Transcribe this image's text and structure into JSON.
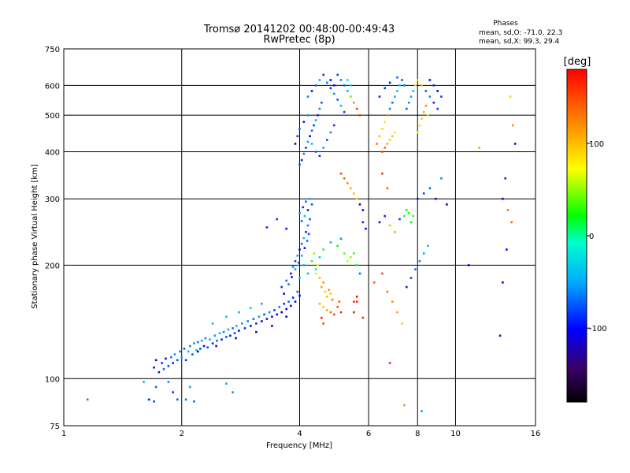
{
  "chart_data": {
    "type": "scatter",
    "title": "Tromsø 20141202 00:48:00-00:49:43",
    "subtitle": "RwPretec (8p)",
    "stats_title": "Phases",
    "stats_o": "mean, sd,O: -71.0, 22.3",
    "stats_x": "mean, sd,X:  99.3, 29.4",
    "xlabel": "Frequency [MHz]",
    "ylabel": "Stationary phase Virtual Height [km]",
    "xscale": "log",
    "yscale": "log",
    "xlim": [
      1,
      16
    ],
    "ylim": [
      75,
      750
    ],
    "xticks": [
      1,
      2,
      4,
      6,
      8,
      10,
      16
    ],
    "xtick_labels": [
      "1",
      "2",
      "4",
      "6",
      "8",
      "10",
      "16"
    ],
    "yticks": [
      75,
      100,
      200,
      300,
      400,
      500,
      600,
      750
    ],
    "ytick_labels": [
      "75",
      "100",
      "200",
      "300",
      "400",
      "500",
      "600",
      "750"
    ],
    "grid": true,
    "colorbar": {
      "label": "[deg]",
      "range": [
        -180,
        180
      ],
      "ticks": [
        100,
        0,
        -100
      ],
      "tick_labels": [
        "100",
        "0",
        "-100"
      ]
    },
    "points": [
      [
        1.15,
        88,
        -60
      ],
      [
        1.6,
        98,
        -45
      ],
      [
        1.65,
        88,
        -90
      ],
      [
        1.7,
        87,
        -80
      ],
      [
        1.72,
        95,
        -70
      ],
      [
        1.85,
        98,
        -60
      ],
      [
        1.9,
        92,
        -85
      ],
      [
        1.95,
        88,
        -75
      ],
      [
        2.05,
        88,
        -65
      ],
      [
        2.1,
        95,
        -50
      ],
      [
        2.15,
        87,
        -70
      ],
      [
        2.6,
        97,
        -50
      ],
      [
        2.7,
        92,
        -55
      ],
      [
        1.7,
        107,
        -100
      ],
      [
        1.72,
        112,
        -115
      ],
      [
        1.75,
        104,
        -95
      ],
      [
        1.78,
        110,
        -85
      ],
      [
        1.8,
        106,
        -70
      ],
      [
        1.82,
        113,
        -100
      ],
      [
        1.85,
        108,
        -80
      ],
      [
        1.88,
        114,
        -65
      ],
      [
        1.9,
        110,
        -90
      ],
      [
        1.92,
        116,
        -55
      ],
      [
        1.95,
        112,
        -75
      ],
      [
        1.98,
        118,
        -60
      ],
      [
        2.0,
        114,
        -50
      ],
      [
        2.03,
        120,
        -70
      ],
      [
        2.05,
        112,
        -85
      ],
      [
        2.08,
        118,
        -45
      ],
      [
        2.1,
        122,
        -60
      ],
      [
        2.13,
        116,
        -75
      ],
      [
        2.15,
        124,
        -55
      ],
      [
        2.18,
        119,
        -40
      ],
      [
        2.2,
        125,
        -65
      ],
      [
        2.23,
        120,
        -80
      ],
      [
        2.25,
        126,
        -50
      ],
      [
        2.28,
        122,
        -95
      ],
      [
        2.3,
        128,
        -60
      ],
      [
        2.33,
        121,
        -75
      ],
      [
        2.36,
        127,
        -45
      ],
      [
        2.4,
        124,
        -85
      ],
      [
        2.43,
        130,
        -55
      ],
      [
        2.46,
        126,
        -70
      ],
      [
        2.5,
        132,
        -40
      ],
      [
        2.53,
        127,
        -90
      ],
      [
        2.56,
        133,
        -60
      ],
      [
        2.6,
        129,
        -75
      ],
      [
        2.63,
        135,
        -50
      ],
      [
        2.66,
        130,
        -95
      ],
      [
        2.7,
        136,
        -65
      ],
      [
        2.73,
        132,
        -80
      ],
      [
        2.76,
        138,
        -45
      ],
      [
        2.8,
        134,
        -100
      ],
      [
        2.85,
        140,
        -55
      ],
      [
        2.9,
        136,
        -85
      ],
      [
        2.95,
        142,
        -60
      ],
      [
        3.0,
        138,
        -105
      ],
      [
        3.05,
        144,
        -70
      ],
      [
        3.1,
        140,
        -90
      ],
      [
        3.15,
        146,
        -50
      ],
      [
        3.2,
        142,
        -110
      ],
      [
        3.25,
        148,
        -75
      ],
      [
        3.3,
        144,
        -95
      ],
      [
        3.35,
        150,
        -60
      ],
      [
        3.4,
        146,
        -115
      ],
      [
        3.45,
        152,
        -80
      ],
      [
        3.5,
        148,
        -100
      ],
      [
        3.55,
        155,
        -65
      ],
      [
        3.6,
        150,
        -120
      ],
      [
        3.65,
        158,
        -85
      ],
      [
        3.7,
        153,
        -105
      ],
      [
        3.75,
        160,
        -70
      ],
      [
        3.8,
        156,
        -125
      ],
      [
        3.85,
        164,
        -90
      ],
      [
        3.9,
        160,
        -110
      ],
      [
        3.95,
        170,
        -75
      ],
      [
        4.0,
        166,
        -100
      ],
      [
        2.2,
        118,
        -105
      ],
      [
        2.45,
        122,
        -115
      ],
      [
        2.75,
        128,
        -110
      ],
      [
        3.1,
        133,
        -120
      ],
      [
        3.4,
        138,
        -108
      ],
      [
        3.7,
        146,
        -118
      ],
      [
        2.4,
        140,
        -40
      ],
      [
        2.6,
        146,
        -35
      ],
      [
        2.8,
        150,
        -45
      ],
      [
        3.0,
        154,
        -30
      ],
      [
        3.2,
        158,
        -50
      ],
      [
        3.3,
        252,
        -90
      ],
      [
        3.5,
        265,
        -80
      ],
      [
        3.7,
        250,
        -100
      ],
      [
        3.6,
        175,
        -85
      ],
      [
        3.7,
        182,
        -70
      ],
      [
        3.8,
        190,
        -95
      ],
      [
        3.85,
        198,
        -60
      ],
      [
        3.9,
        205,
        -80
      ],
      [
        3.95,
        212,
        -50
      ],
      [
        4.0,
        220,
        -100
      ],
      [
        4.05,
        228,
        -70
      ],
      [
        4.1,
        236,
        -40
      ],
      [
        4.15,
        245,
        -90
      ],
      [
        4.2,
        255,
        -60
      ],
      [
        4.25,
        265,
        -75
      ],
      [
        3.65,
        168,
        -110
      ],
      [
        3.75,
        178,
        -65
      ],
      [
        3.82,
        186,
        -90
      ],
      [
        3.9,
        195,
        -55
      ],
      [
        3.98,
        203,
        -85
      ],
      [
        4.05,
        212,
        -45
      ],
      [
        4.12,
        222,
        -95
      ],
      [
        4.18,
        232,
        -65
      ],
      [
        4.22,
        242,
        -80
      ],
      [
        4.0,
        185,
        -30
      ],
      [
        4.1,
        200,
        -40
      ],
      [
        4.2,
        190,
        -50
      ],
      [
        4.0,
        275,
        -55
      ],
      [
        4.05,
        262,
        -70
      ],
      [
        4.08,
        285,
        -85
      ],
      [
        4.12,
        270,
        -40
      ],
      [
        4.15,
        295,
        -65
      ],
      [
        4.2,
        280,
        -95
      ],
      [
        4.25,
        300,
        -50
      ],
      [
        4.3,
        290,
        -75
      ],
      [
        4.3,
        205,
        30
      ],
      [
        4.35,
        215,
        50
      ],
      [
        4.4,
        190,
        60
      ],
      [
        4.45,
        200,
        80
      ],
      [
        4.5,
        185,
        100
      ],
      [
        4.55,
        175,
        110
      ],
      [
        4.6,
        180,
        120
      ],
      [
        4.65,
        170,
        90
      ],
      [
        4.7,
        165,
        100
      ],
      [
        4.75,
        172,
        115
      ],
      [
        4.8,
        168,
        95
      ],
      [
        4.85,
        162,
        130
      ],
      [
        4.5,
        158,
        105
      ],
      [
        4.6,
        155,
        98
      ],
      [
        4.7,
        152,
        108
      ],
      [
        4.8,
        150,
        135
      ],
      [
        4.9,
        148,
        150
      ],
      [
        5.0,
        155,
        145
      ],
      [
        5.05,
        160,
        140
      ],
      [
        5.1,
        150,
        160
      ],
      [
        4.55,
        145,
        165
      ],
      [
        4.6,
        140,
        150
      ],
      [
        4.4,
        195,
        -20
      ],
      [
        4.5,
        210,
        -30
      ],
      [
        4.6,
        220,
        10
      ],
      [
        4.8,
        230,
        -40
      ],
      [
        5.0,
        225,
        20
      ],
      [
        5.2,
        215,
        40
      ],
      [
        5.3,
        205,
        60
      ],
      [
        5.1,
        235,
        -60
      ],
      [
        5.4,
        210,
        50
      ],
      [
        5.5,
        215,
        30
      ],
      [
        5.6,
        200,
        20
      ],
      [
        5.7,
        190,
        -70
      ],
      [
        5.5,
        150,
        170
      ],
      [
        5.6,
        160,
        165
      ],
      [
        5.6,
        165,
        175
      ],
      [
        5.5,
        160,
        160
      ],
      [
        5.8,
        145,
        160
      ],
      [
        4.0,
        370,
        -70
      ],
      [
        4.05,
        380,
        -95
      ],
      [
        4.1,
        395,
        -60
      ],
      [
        4.15,
        410,
        -85
      ],
      [
        4.2,
        425,
        -50
      ],
      [
        4.25,
        440,
        -100
      ],
      [
        4.3,
        455,
        -65
      ],
      [
        4.35,
        470,
        -80
      ],
      [
        4.4,
        485,
        -45
      ],
      [
        4.45,
        500,
        -90
      ],
      [
        4.5,
        520,
        -60
      ],
      [
        4.55,
        540,
        -75
      ],
      [
        3.9,
        420,
        -100
      ],
      [
        3.95,
        440,
        -85
      ],
      [
        4.0,
        460,
        -65
      ],
      [
        4.1,
        480,
        -95
      ],
      [
        4.2,
        500,
        -55
      ],
      [
        4.3,
        420,
        -40
      ],
      [
        4.4,
        400,
        -70
      ],
      [
        4.5,
        390,
        -90
      ],
      [
        4.6,
        410,
        -50
      ],
      [
        4.7,
        430,
        -75
      ],
      [
        4.8,
        450,
        -60
      ],
      [
        4.9,
        470,
        -85
      ],
      [
        4.2,
        560,
        -60
      ],
      [
        4.3,
        580,
        -95
      ],
      [
        4.4,
        600,
        -70
      ],
      [
        4.5,
        620,
        -50
      ],
      [
        4.6,
        640,
        -85
      ],
      [
        4.7,
        610,
        -65
      ],
      [
        4.8,
        590,
        -90
      ],
      [
        4.9,
        570,
        -55
      ],
      [
        5.0,
        550,
        -75
      ],
      [
        5.1,
        530,
        -45
      ],
      [
        5.2,
        510,
        -80
      ],
      [
        4.8,
        620,
        -110
      ],
      [
        4.9,
        600,
        -95
      ],
      [
        5.0,
        640,
        -80
      ],
      [
        5.1,
        620,
        -60
      ],
      [
        5.2,
        600,
        -70
      ],
      [
        5.3,
        580,
        -50
      ],
      [
        5.4,
        560,
        40
      ],
      [
        5.5,
        540,
        120
      ],
      [
        5.6,
        520,
        150
      ],
      [
        5.7,
        500,
        160
      ],
      [
        5.3,
        620,
        -20
      ],
      [
        5.4,
        600,
        -30
      ],
      [
        5.1,
        350,
        155
      ],
      [
        5.2,
        340,
        140
      ],
      [
        5.3,
        330,
        120
      ],
      [
        5.4,
        320,
        110
      ],
      [
        5.5,
        310,
        100
      ],
      [
        5.6,
        300,
        90
      ],
      [
        5.7,
        290,
        -100
      ],
      [
        5.8,
        280,
        -110
      ],
      [
        5.8,
        260,
        -90
      ],
      [
        5.9,
        250,
        -100
      ],
      [
        6.3,
        420,
        130
      ],
      [
        6.4,
        440,
        100
      ],
      [
        6.5,
        460,
        90
      ],
      [
        6.6,
        480,
        80
      ],
      [
        6.7,
        500,
        120
      ],
      [
        6.8,
        520,
        -60
      ],
      [
        6.9,
        540,
        -70
      ],
      [
        7.0,
        560,
        -50
      ],
      [
        7.1,
        580,
        -40
      ],
      [
        7.2,
        600,
        -30
      ],
      [
        7.3,
        620,
        -80
      ],
      [
        7.4,
        600,
        -60
      ],
      [
        6.5,
        400,
        150
      ],
      [
        6.6,
        410,
        130
      ],
      [
        6.7,
        420,
        110
      ],
      [
        6.8,
        430,
        95
      ],
      [
        6.9,
        440,
        100
      ],
      [
        7.0,
        450,
        85
      ],
      [
        6.4,
        560,
        -90
      ],
      [
        6.6,
        590,
        -85
      ],
      [
        6.8,
        610,
        -95
      ],
      [
        7.1,
        630,
        -70
      ],
      [
        6.5,
        350,
        160
      ],
      [
        6.7,
        320,
        140
      ],
      [
        7.5,
        520,
        -70
      ],
      [
        7.6,
        540,
        -60
      ],
      [
        7.7,
        560,
        -50
      ],
      [
        7.8,
        580,
        -40
      ],
      [
        7.9,
        600,
        80
      ],
      [
        8.0,
        620,
        90
      ],
      [
        8.2,
        600,
        100
      ],
      [
        8.4,
        580,
        -70
      ],
      [
        8.6,
        560,
        -60
      ],
      [
        8.8,
        540,
        -90
      ],
      [
        9.0,
        520,
        -80
      ],
      [
        8.5,
        500,
        60
      ],
      [
        8.0,
        450,
        70
      ],
      [
        8.1,
        470,
        85
      ],
      [
        8.2,
        490,
        95
      ],
      [
        8.3,
        510,
        110
      ],
      [
        8.4,
        530,
        120
      ],
      [
        8.6,
        620,
        -100
      ],
      [
        8.8,
        600,
        -90
      ],
      [
        9.0,
        580,
        -110
      ],
      [
        9.2,
        560,
        -80
      ],
      [
        6.2,
        180,
        140
      ],
      [
        6.5,
        190,
        150
      ],
      [
        6.7,
        170,
        130
      ],
      [
        6.9,
        160,
        120
      ],
      [
        7.1,
        150,
        110
      ],
      [
        7.3,
        140,
        100
      ],
      [
        7.5,
        175,
        -90
      ],
      [
        7.7,
        185,
        -80
      ],
      [
        7.9,
        195,
        -70
      ],
      [
        8.1,
        205,
        -60
      ],
      [
        8.3,
        215,
        -50
      ],
      [
        8.5,
        225,
        -40
      ],
      [
        6.4,
        260,
        -100
      ],
      [
        6.6,
        270,
        -90
      ],
      [
        6.8,
        255,
        100
      ],
      [
        7.0,
        245,
        110
      ],
      [
        7.2,
        265,
        -80
      ],
      [
        7.4,
        270,
        30
      ],
      [
        7.5,
        280,
        20
      ],
      [
        7.6,
        275,
        25
      ],
      [
        7.7,
        260,
        15
      ],
      [
        7.8,
        270,
        30
      ],
      [
        6.8,
        110,
        160
      ],
      [
        7.4,
        85,
        120
      ],
      [
        8.0,
        300,
        -90
      ],
      [
        8.3,
        310,
        -80
      ],
      [
        8.6,
        320,
        -70
      ],
      [
        8.9,
        300,
        -100
      ],
      [
        9.2,
        340,
        -60
      ],
      [
        9.5,
        290,
        -110
      ],
      [
        10.8,
        200,
        -100
      ],
      [
        11.5,
        410,
        110
      ],
      [
        13.2,
        300,
        -110
      ],
      [
        13.4,
        340,
        -90
      ],
      [
        13.5,
        220,
        -100
      ],
      [
        13.0,
        130,
        -120
      ],
      [
        13.8,
        560,
        90
      ],
      [
        14.0,
        470,
        120
      ],
      [
        14.2,
        420,
        -110
      ],
      [
        13.6,
        280,
        130
      ],
      [
        13.9,
        260,
        140
      ],
      [
        13.2,
        180,
        -100
      ],
      [
        8.2,
        82,
        -50
      ]
    ]
  }
}
